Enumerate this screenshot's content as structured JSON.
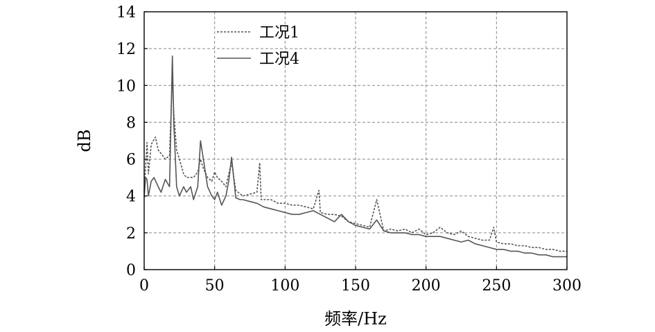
{
  "chart_data": {
    "type": "line",
    "xlabel": "频率/Hz",
    "ylabel": "dB",
    "xlim": [
      0,
      300
    ],
    "ylim": [
      0,
      14
    ],
    "xticks": [
      0,
      50,
      100,
      150,
      200,
      250,
      300
    ],
    "yticks": [
      0,
      2,
      4,
      6,
      8,
      10,
      12,
      14
    ],
    "grid": "dashed",
    "legend_position": "top-left",
    "series": [
      {
        "name": "工况1",
        "style": "dotted",
        "color": "#555555",
        "x": [
          0,
          2,
          3,
          5,
          8,
          10,
          12,
          15,
          18,
          20,
          21,
          23,
          25,
          28,
          30,
          35,
          38,
          40,
          42,
          45,
          48,
          50,
          52,
          55,
          58,
          60,
          62,
          65,
          70,
          75,
          80,
          82,
          83,
          85,
          90,
          95,
          100,
          105,
          110,
          115,
          120,
          124,
          125,
          130,
          135,
          140,
          145,
          150,
          155,
          160,
          165,
          170,
          175,
          180,
          185,
          190,
          195,
          200,
          205,
          210,
          215,
          220,
          225,
          230,
          235,
          240,
          245,
          248,
          250,
          255,
          260,
          265,
          270,
          275,
          280,
          285,
          290,
          295,
          300
        ],
        "y": [
          4.2,
          6.9,
          5.2,
          6.8,
          7.2,
          6.5,
          6.3,
          6.0,
          6.2,
          10.5,
          8.5,
          6.5,
          6.0,
          5.2,
          5.0,
          5.0,
          5.3,
          6.0,
          5.5,
          5.0,
          4.8,
          5.3,
          5.0,
          4.8,
          4.5,
          5.2,
          5.8,
          4.3,
          4.0,
          4.1,
          4.2,
          5.8,
          3.8,
          3.8,
          3.8,
          3.6,
          3.6,
          3.5,
          3.5,
          3.4,
          3.3,
          4.3,
          3.1,
          3.0,
          3.0,
          2.9,
          2.6,
          2.5,
          2.4,
          2.3,
          3.8,
          2.1,
          2.2,
          2.1,
          2.2,
          2.0,
          2.2,
          1.9,
          2.0,
          2.3,
          2.0,
          1.9,
          2.1,
          1.8,
          1.7,
          1.6,
          1.6,
          2.3,
          1.5,
          1.4,
          1.4,
          1.3,
          1.3,
          1.2,
          1.2,
          1.1,
          1.1,
          1.0,
          1.0
        ]
      },
      {
        "name": "工况4",
        "style": "solid",
        "color": "#555555",
        "x": [
          0,
          1,
          2,
          3,
          5,
          7,
          10,
          12,
          15,
          18,
          20,
          21,
          23,
          25,
          28,
          30,
          33,
          35,
          38,
          40,
          42,
          45,
          48,
          50,
          52,
          55,
          58,
          60,
          62,
          65,
          68,
          70,
          75,
          80,
          85,
          90,
          95,
          100,
          105,
          110,
          115,
          120,
          125,
          130,
          135,
          140,
          145,
          150,
          155,
          160,
          165,
          170,
          175,
          180,
          185,
          190,
          195,
          200,
          205,
          210,
          215,
          220,
          225,
          230,
          235,
          240,
          245,
          250,
          255,
          260,
          265,
          270,
          275,
          280,
          285,
          290,
          295,
          300
        ],
        "y": [
          3.9,
          5.0,
          4.9,
          4.0,
          4.8,
          5.0,
          4.5,
          4.2,
          4.9,
          4.5,
          11.6,
          8.0,
          4.5,
          4.0,
          4.5,
          4.2,
          4.5,
          3.8,
          4.5,
          7.0,
          6.0,
          4.5,
          4.0,
          3.8,
          4.2,
          3.5,
          4.0,
          4.8,
          6.1,
          3.9,
          3.8,
          3.8,
          3.7,
          3.6,
          3.4,
          3.3,
          3.2,
          3.1,
          3.0,
          3.0,
          3.1,
          3.2,
          3.0,
          2.8,
          2.6,
          3.0,
          2.6,
          2.4,
          2.3,
          2.2,
          2.7,
          2.1,
          2.0,
          2.0,
          2.0,
          1.9,
          1.9,
          1.8,
          1.8,
          1.8,
          1.7,
          1.6,
          1.5,
          1.6,
          1.4,
          1.3,
          1.2,
          1.1,
          1.1,
          1.0,
          1.0,
          0.9,
          0.9,
          0.8,
          0.8,
          0.7,
          0.7,
          0.7
        ]
      }
    ]
  }
}
